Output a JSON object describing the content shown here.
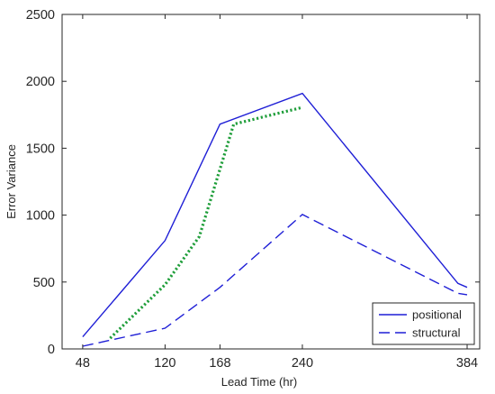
{
  "chart_data": {
    "type": "line",
    "xlabel": "Lead Time (hr)",
    "ylabel": "Error Variance",
    "xlim": [
      30,
      395
    ],
    "ylim": [
      0,
      2500
    ],
    "xticks": [
      48,
      120,
      168,
      240,
      384
    ],
    "yticks": [
      0,
      500,
      1000,
      1500,
      2000,
      2500
    ],
    "grid": false,
    "legend_position": "bottom-right",
    "series": [
      {
        "name": "positional",
        "style": "solid",
        "color": "#1f1fd6",
        "x": [
          48,
          120,
          168,
          240,
          376,
          384
        ],
        "y": [
          90,
          810,
          1680,
          1910,
          490,
          460
        ]
      },
      {
        "name": "structural",
        "style": "dashed",
        "color": "#1f1fd6",
        "x": [
          48,
          120,
          168,
          240,
          376,
          384
        ],
        "y": [
          20,
          155,
          460,
          1005,
          415,
          405
        ]
      },
      {
        "style": "dotted",
        "color": "#1f9e3a",
        "x": [
          72,
          120,
          150,
          180,
          240
        ],
        "y": [
          80,
          480,
          840,
          1680,
          1805
        ]
      }
    ]
  }
}
